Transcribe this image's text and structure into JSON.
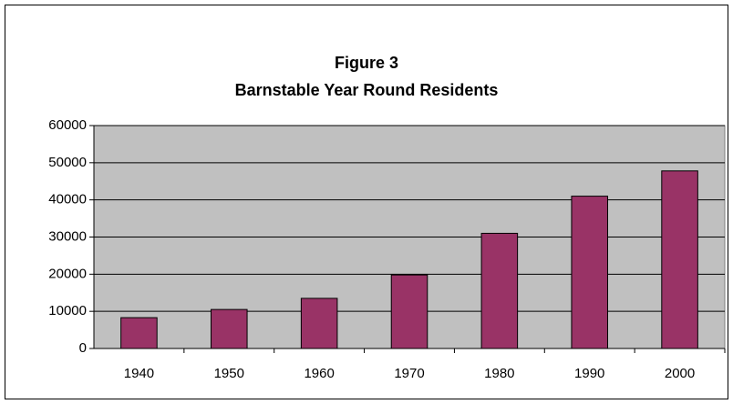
{
  "chart_data": {
    "type": "bar",
    "title": "Figure 3",
    "subtitle": "Barnstable Year Round Residents",
    "categories": [
      "1940",
      "1950",
      "1960",
      "1970",
      "1980",
      "1990",
      "2000"
    ],
    "values": [
      8300,
      10500,
      13500,
      19800,
      31000,
      41000,
      47800
    ],
    "color": "#993366",
    "ylim": [
      0,
      60000
    ],
    "yticks": [
      0,
      10000,
      20000,
      30000,
      40000,
      50000,
      60000
    ],
    "grid": true
  }
}
